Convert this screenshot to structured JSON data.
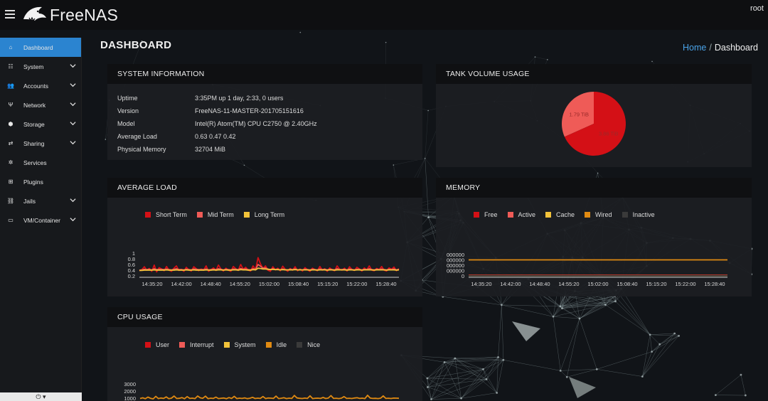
{
  "app": {
    "brand": "FreeNAS",
    "user": "root"
  },
  "sidebar": {
    "items": [
      {
        "label": "Dashboard",
        "icon": "home-icon",
        "active": true
      },
      {
        "label": "System",
        "icon": "sliders-icon",
        "expandable": true
      },
      {
        "label": "Accounts",
        "icon": "users-icon",
        "expandable": true
      },
      {
        "label": "Network",
        "icon": "network-icon",
        "expandable": true
      },
      {
        "label": "Storage",
        "icon": "storage-icon",
        "expandable": true
      },
      {
        "label": "Sharing",
        "icon": "share-icon",
        "expandable": true
      },
      {
        "label": "Services",
        "icon": "gear-icon"
      },
      {
        "label": "Plugins",
        "icon": "grid-icon"
      },
      {
        "label": "Jails",
        "icon": "jail-icon",
        "expandable": true
      },
      {
        "label": "VM/Container",
        "icon": "monitor-icon",
        "expandable": true
      }
    ],
    "power_icon": "power-icon"
  },
  "page": {
    "title": "DASHBOARD",
    "breadcrumb": {
      "home": "Home",
      "separator": "/",
      "current": "Dashboard"
    }
  },
  "system_info": {
    "title": "SYSTEM INFORMATION",
    "rows": [
      {
        "label": "Uptime",
        "value": "3:35PM up 1 day, 2:33, 0 users"
      },
      {
        "label": "Version",
        "value": "FreeNAS-11-MASTER-201705151616"
      },
      {
        "label": "Model",
        "value": "Intel(R) Atom(TM) CPU C2750 @ 2.40GHz"
      },
      {
        "label": "Average Load",
        "value": "0.63 0.47 0.42"
      },
      {
        "label": "Physical Memory",
        "value": "32704 MiB"
      }
    ]
  },
  "colors": {
    "red": "#d41016",
    "salmon": "#ef5b57",
    "yellow": "#f2c23a",
    "orange": "#e08a12",
    "dark": "#3a3a3a",
    "accent": "#2b84d0"
  },
  "chart_data": [
    {
      "id": "tank",
      "type": "pie",
      "title": "TANK VOLUME USAGE",
      "slices": [
        {
          "label": "1.79 TiB",
          "value": 1.79,
          "color": "#ef5b57"
        },
        {
          "label": "3.86 TiB",
          "value": 3.86,
          "color": "#d41016"
        }
      ]
    },
    {
      "id": "avgload",
      "type": "line",
      "title": "AVERAGE LOAD",
      "yticks": [
        "1",
        "0.8",
        "0.6",
        "0.4",
        "0.2"
      ],
      "ylim": [
        0.2,
        1.0
      ],
      "xticks": [
        "14:35:20",
        "14:42:00",
        "14:48:40",
        "14:55:20",
        "15:02:00",
        "15:08:40",
        "15:15:20",
        "15:22:00",
        "15:28:40"
      ],
      "series": [
        {
          "name": "Short Term",
          "color": "#d41016",
          "values": [
            0.38,
            0.42,
            0.52,
            0.4,
            0.46,
            0.36,
            0.58,
            0.34,
            0.49,
            0.44,
            0.38,
            0.53,
            0.4,
            0.36,
            0.47,
            0.55,
            0.39,
            0.43,
            0.36,
            0.5,
            0.41,
            0.37,
            0.52,
            0.45,
            0.38,
            0.44,
            0.4,
            0.55,
            0.36,
            0.42,
            0.48,
            0.39,
            0.58,
            0.44,
            0.37,
            0.47,
            0.4,
            0.36,
            0.53,
            0.45,
            0.39,
            0.6,
            0.43,
            0.5,
            0.4,
            0.37,
            0.55,
            0.42,
            0.84,
            0.62,
            0.46,
            0.55,
            0.4,
            0.36,
            0.52,
            0.41,
            0.47,
            0.38,
            0.54,
            0.43,
            0.36,
            0.46,
            0.4,
            0.52,
            0.38,
            0.44,
            0.37,
            0.49,
            0.41,
            0.36,
            0.47,
            0.42,
            0.38,
            0.53,
            0.4,
            0.45,
            0.36,
            0.48,
            0.41,
            0.38,
            0.55,
            0.43,
            0.4,
            0.47,
            0.37,
            0.52,
            0.42,
            0.39,
            0.5,
            0.44,
            0.37,
            0.48,
            0.41,
            0.55,
            0.4,
            0.38,
            0.46,
            0.42,
            0.53,
            0.4,
            0.37,
            0.48,
            0.43,
            0.51,
            0.38,
            0.45
          ]
        },
        {
          "name": "Mid Term",
          "color": "#ef5b57",
          "values": [
            0.4,
            0.41,
            0.43,
            0.42,
            0.43,
            0.41,
            0.45,
            0.42,
            0.43,
            0.43,
            0.42,
            0.44,
            0.42,
            0.41,
            0.43,
            0.45,
            0.42,
            0.42,
            0.41,
            0.43,
            0.42,
            0.41,
            0.44,
            0.43,
            0.42,
            0.42,
            0.42,
            0.44,
            0.41,
            0.42,
            0.43,
            0.42,
            0.45,
            0.43,
            0.41,
            0.43,
            0.42,
            0.41,
            0.44,
            0.43,
            0.42,
            0.46,
            0.43,
            0.44,
            0.42,
            0.41,
            0.45,
            0.43,
            0.6,
            0.54,
            0.47,
            0.48,
            0.44,
            0.42,
            0.45,
            0.42,
            0.43,
            0.41,
            0.44,
            0.42,
            0.41,
            0.43,
            0.42,
            0.44,
            0.41,
            0.42,
            0.41,
            0.43,
            0.42,
            0.41,
            0.43,
            0.42,
            0.41,
            0.44,
            0.42,
            0.43,
            0.41,
            0.43,
            0.42,
            0.41,
            0.45,
            0.42,
            0.42,
            0.43,
            0.41,
            0.44,
            0.42,
            0.41,
            0.43,
            0.43,
            0.41,
            0.43,
            0.42,
            0.45,
            0.42,
            0.41,
            0.43,
            0.42,
            0.44,
            0.42,
            0.41,
            0.43,
            0.42,
            0.44,
            0.41,
            0.43
          ]
        },
        {
          "name": "Long Term",
          "color": "#f2c23a",
          "values": [
            0.39,
            0.39,
            0.4,
            0.4,
            0.4,
            0.4,
            0.41,
            0.4,
            0.4,
            0.4,
            0.4,
            0.41,
            0.4,
            0.4,
            0.4,
            0.41,
            0.4,
            0.4,
            0.4,
            0.41,
            0.4,
            0.4,
            0.41,
            0.4,
            0.4,
            0.4,
            0.4,
            0.41,
            0.4,
            0.4,
            0.41,
            0.4,
            0.41,
            0.41,
            0.4,
            0.41,
            0.4,
            0.4,
            0.41,
            0.41,
            0.4,
            0.42,
            0.41,
            0.41,
            0.4,
            0.4,
            0.42,
            0.41,
            0.47,
            0.46,
            0.44,
            0.44,
            0.43,
            0.42,
            0.43,
            0.42,
            0.42,
            0.41,
            0.42,
            0.41,
            0.41,
            0.41,
            0.41,
            0.42,
            0.41,
            0.41,
            0.41,
            0.41,
            0.41,
            0.4,
            0.41,
            0.41,
            0.4,
            0.41,
            0.41,
            0.41,
            0.4,
            0.41,
            0.41,
            0.4,
            0.41,
            0.41,
            0.41,
            0.41,
            0.4,
            0.41,
            0.41,
            0.4,
            0.41,
            0.41,
            0.4,
            0.41,
            0.41,
            0.41,
            0.41,
            0.4,
            0.41,
            0.41,
            0.41,
            0.41,
            0.4,
            0.41,
            0.41,
            0.41,
            0.4,
            0.41
          ]
        }
      ]
    },
    {
      "id": "memory",
      "type": "line",
      "title": "MEMORY",
      "yticks": [
        "000000",
        "000000",
        "000000",
        "000000",
        "0"
      ],
      "ylim": [
        0,
        4
      ],
      "xticks": [
        "14:35:20",
        "14:42:00",
        "14:48:40",
        "14:55:20",
        "15:02:00",
        "15:08:40",
        "15:15:20",
        "15:22:00",
        "15:28:40"
      ],
      "series": [
        {
          "name": "Free",
          "color": "#d41016",
          "values": [
            0.12,
            0.12
          ]
        },
        {
          "name": "Active",
          "color": "#ef5b57",
          "values": [
            0.05,
            0.05
          ]
        },
        {
          "name": "Cache",
          "color": "#f2c23a",
          "values": [
            0.02,
            0.02
          ]
        },
        {
          "name": "Wired",
          "color": "#e08a12",
          "values": [
            3.0,
            3.0
          ]
        },
        {
          "name": "Inactive",
          "color": "#3a3a3a",
          "values": [
            0.01,
            0.01
          ]
        }
      ]
    },
    {
      "id": "cpu",
      "type": "line",
      "title": "CPU USAGE",
      "yticks": [
        "3000",
        "2000",
        "1000"
      ],
      "ylim": [
        0,
        3000
      ],
      "series": [
        {
          "name": "User",
          "color": "#d41016",
          "values": [
            20,
            20
          ]
        },
        {
          "name": "Interrupt",
          "color": "#ef5b57",
          "values": [
            5,
            5
          ]
        },
        {
          "name": "System",
          "color": "#f2c23a",
          "values": [
            10,
            10
          ]
        },
        {
          "name": "Idle",
          "color": "#e08a12",
          "values": [
            950,
            1050,
            920,
            1150,
            980,
            900,
            1250,
            940,
            1020,
            960,
            1180,
            930,
            1000,
            1300,
            950,
            980,
            1080,
            920,
            1220,
            960,
            1000,
            940,
            1300,
            1050,
            980,
            1280,
            930,
            1000,
            960,
            1150,
            940,
            990,
            1020,
            920,
            1080,
            960,
            1260,
            940,
            1000,
            960,
            1040,
            930,
            990,
            1120,
            950,
            1000,
            960,
            1230,
            940,
            1020,
            1000,
            960,
            1290,
            940,
            990,
            1060,
            940,
            1000,
            960,
            1380,
            1030,
            980,
            950,
            1010,
            960,
            1330,
            940,
            990,
            1000,
            960,
            1100,
            950,
            1010,
            1360,
            960,
            990,
            940,
            1000,
            1220,
            960,
            990,
            950,
            1020,
            1060,
            960,
            1000,
            940,
            1400,
            1010,
            960,
            980,
            940,
            1000,
            1320,
            960,
            990,
            950,
            1010,
            1000,
            980
          ]
        },
        {
          "name": "Nice",
          "color": "#3a3a3a",
          "values": [
            0,
            0
          ]
        }
      ]
    }
  ]
}
